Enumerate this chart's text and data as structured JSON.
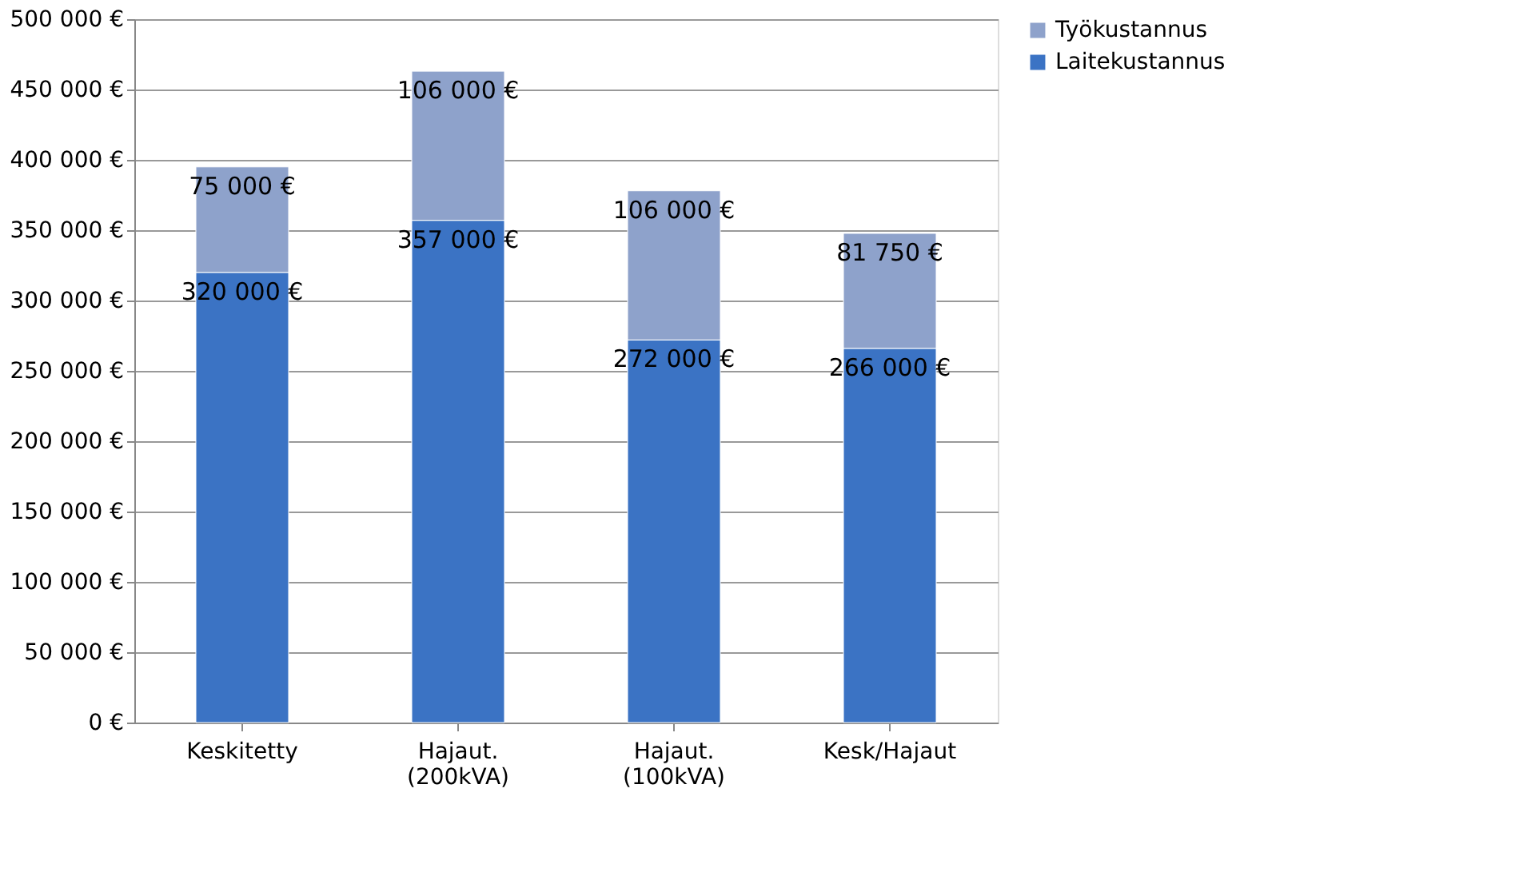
{
  "chart_data": {
    "type": "bar",
    "stacked": true,
    "categories": [
      "Keskitetty",
      "Hajaut. (200kVA)",
      "Hajaut. (100kVA)",
      "Kesk/Hajaut"
    ],
    "series": [
      {
        "name": "Laitekustannus",
        "color": "#3b73c4",
        "values": [
          320000,
          357000,
          272000,
          266000
        ],
        "value_labels": [
          "320 000 €",
          "357 000 €",
          "272 000 €",
          "266 000 €"
        ]
      },
      {
        "name": "Työkustannus",
        "color": "#8ea2cb",
        "values": [
          75000,
          106000,
          106000,
          81750
        ],
        "value_labels": [
          "75 000 €",
          "106 000 €",
          "106 000 €",
          "81 750 €"
        ]
      }
    ],
    "ylim": [
      0,
      500000
    ],
    "yticks": [
      {
        "value": 0,
        "label": "0 €"
      },
      {
        "value": 50000,
        "label": "50 000 €"
      },
      {
        "value": 100000,
        "label": "100 000 €"
      },
      {
        "value": 150000,
        "label": "150 000 €"
      },
      {
        "value": 200000,
        "label": "200 000 €"
      },
      {
        "value": 250000,
        "label": "250 000 €"
      },
      {
        "value": 300000,
        "label": "300 000 €"
      },
      {
        "value": 350000,
        "label": "350 000 €"
      },
      {
        "value": 400000,
        "label": "400 000 €"
      },
      {
        "value": 450000,
        "label": "450 000 €"
      },
      {
        "value": 500000,
        "label": "500 000 €"
      }
    ],
    "grid": "y",
    "legend": "right"
  }
}
